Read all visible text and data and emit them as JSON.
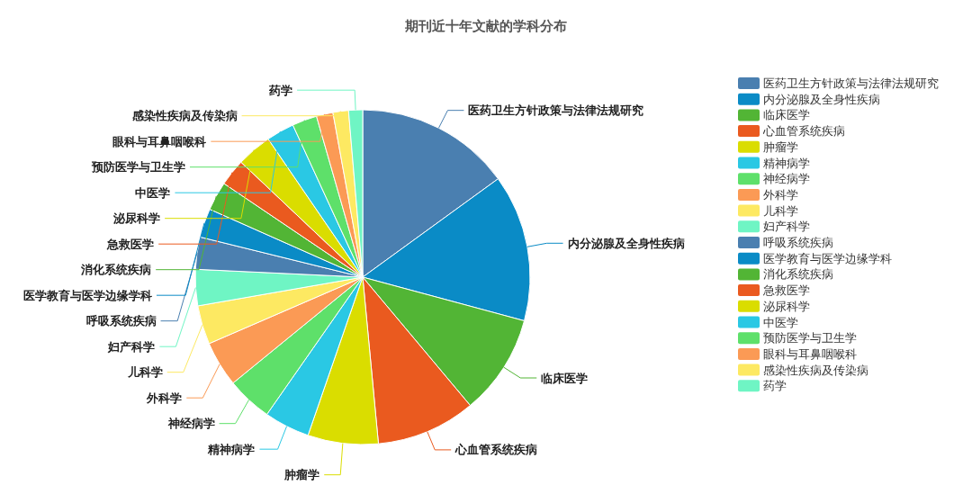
{
  "chart_data": {
    "type": "pie",
    "title": "期刊近十年文献的学科分布",
    "legend": "right",
    "categories": [
      "医药卫生方针政策与法律法规研究",
      "内分泌腺及全身性疾病",
      "临床医学",
      "心血管系统疾病",
      "肿瘤学",
      "精神病学",
      "神经病学",
      "外科学",
      "儿科学",
      "妇产科学",
      "呼吸系统疾病",
      "医学教育与医学边缘学科",
      "消化系统疾病",
      "急救医学",
      "泌尿科学",
      "中医学",
      "预防医学与卫生学",
      "眼科与耳鼻咽喉科",
      "感染性疾病及传染病",
      "药学"
    ],
    "values": [
      15,
      14.2,
      9.7,
      9.6,
      6.8,
      4.4,
      4.4,
      4.4,
      3.75,
      3.5,
      3.1,
      2.8,
      2.8,
      2.6,
      3.4,
      2.7,
      2.4,
      1.6,
      1.5,
      1.35
    ],
    "colors": [
      "#4a7fb0",
      "#0a8bc6",
      "#52b535",
      "#ea5a1f",
      "#dadd00",
      "#2ac8e4",
      "#5ee06a",
      "#fb9a55",
      "#fde962",
      "#6ff5c4",
      "#4a7fb0",
      "#0a8bc6",
      "#52b535",
      "#ea5a1f",
      "#dadd00",
      "#2ac8e4",
      "#5ee06a",
      "#fb9a55",
      "#fde962",
      "#6ff5c4"
    ]
  }
}
